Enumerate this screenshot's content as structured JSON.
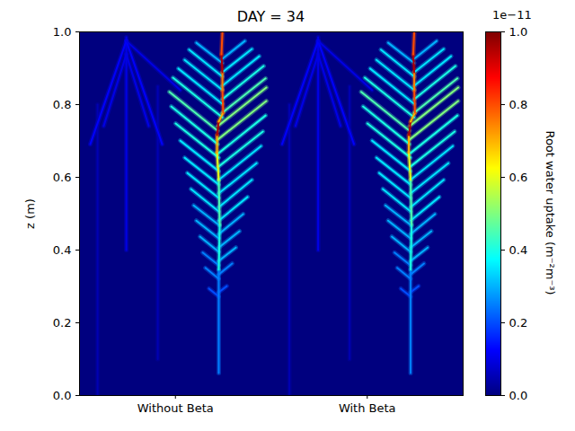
{
  "chart_data": {
    "type": "heatmap",
    "title": "DAY = 34",
    "ylabel": "z (m)",
    "xlim": [
      0,
      2
    ],
    "xticks": [
      {
        "value": 0.5,
        "label": "Without Beta"
      },
      {
        "value": 1.5,
        "label": "With Beta"
      }
    ],
    "ylim": [
      0,
      1
    ],
    "yticks": [
      {
        "value": 0,
        "label": "0.0"
      },
      0.2,
      0.4,
      0.6,
      0.8,
      {
        "value": 1,
        "label": "1.0"
      }
    ],
    "background_value": 0,
    "colorbar": {
      "label": "Root water uptake (m⁻²m⁻³)",
      "offset_label": "1e−11",
      "range": [
        0,
        1e-11
      ],
      "ticks": [
        {
          "value": 0,
          "label": "0.0"
        },
        {
          "value": 2e-12,
          "label": "0.2"
        },
        {
          "value": 4e-12,
          "label": "0.4"
        },
        {
          "value": 6e-12,
          "label": "0.6"
        },
        {
          "value": 8e-12,
          "label": "0.8"
        },
        {
          "value": 1e-11,
          "label": "1.0"
        }
      ]
    },
    "segments": [
      {
        "x": [
          0.094,
          0.094
        ],
        "z": [
          0.0,
          0.8
        ],
        "value": 5e-13
      },
      {
        "x": [
          0.408,
          0.408
        ],
        "z": [
          0.1,
          0.85
        ],
        "value": 5e-13
      },
      {
        "x": [
          0.244,
          0.244
        ],
        "z": [
          0.4,
          0.985
        ],
        "value": 1e-12
      },
      {
        "x": [
          0.244,
          0.056
        ],
        "z": [
          0.975,
          0.691
        ],
        "value": 1.2e-12
      },
      {
        "x": [
          0.244,
          0.431
        ],
        "z": [
          0.975,
          0.691
        ],
        "value": 1.2e-12
      },
      {
        "x": [
          0.244,
          0.126
        ],
        "z": [
          0.938,
          0.741
        ],
        "value": 1e-12
      },
      {
        "x": [
          0.244,
          0.361
        ],
        "z": [
          0.938,
          0.741
        ],
        "value": 1e-12
      },
      {
        "x": [
          0.244,
          0.525
        ],
        "z": [
          0.975,
          0.84
        ],
        "value": 1e-12
      },
      {
        "x": [
          0.726,
          0.675
        ],
        "z": [
          0.272,
          0.294
        ],
        "value": 2e-12
      },
      {
        "x": [
          0.726,
          0.656
        ],
        "z": [
          0.321,
          0.351
        ],
        "value": 2.5e-12
      },
      {
        "x": [
          0.726,
          0.642
        ],
        "z": [
          0.358,
          0.393
        ],
        "value": 2.5e-12
      },
      {
        "x": [
          0.726,
          0.628
        ],
        "z": [
          0.395,
          0.437
        ],
        "value": 3e-12
      },
      {
        "x": [
          0.726,
          0.609
        ],
        "z": [
          0.432,
          0.481
        ],
        "value": 3e-12
      },
      {
        "x": [
          0.726,
          0.595
        ],
        "z": [
          0.469,
          0.523
        ],
        "value": 3e-12
      },
      {
        "x": [
          0.726,
          0.581
        ],
        "z": [
          0.506,
          0.568
        ],
        "value": 3.5e-12
      },
      {
        "x": [
          0.726,
          0.562
        ],
        "z": [
          0.543,
          0.612
        ],
        "value": 3.5e-12
      },
      {
        "x": [
          0.726,
          0.548
        ],
        "z": [
          0.58,
          0.654
        ],
        "value": 3.5e-12
      },
      {
        "x": [
          0.726,
          0.525
        ],
        "z": [
          0.617,
          0.701
        ],
        "value": 3.5e-12
      },
      {
        "x": [
          0.726,
          0.501
        ],
        "z": [
          0.654,
          0.748
        ],
        "value": 4e-12
      },
      {
        "x": [
          0.721,
          0.478
        ],
        "z": [
          0.691,
          0.795
        ],
        "value": 4e-12
      },
      {
        "x": [
          0.721,
          0.468
        ],
        "z": [
          0.728,
          0.835
        ],
        "value": 4.5e-12
      },
      {
        "x": [
          0.745,
          0.487
        ],
        "z": [
          0.765,
          0.874
        ],
        "value": 4e-12
      },
      {
        "x": [
          0.745,
          0.515
        ],
        "z": [
          0.802,
          0.899
        ],
        "value": 3.5e-12
      },
      {
        "x": [
          0.745,
          0.548
        ],
        "z": [
          0.84,
          0.923
        ],
        "value": 3.5e-12
      },
      {
        "x": [
          0.745,
          0.571
        ],
        "z": [
          0.877,
          0.951
        ],
        "value": 3.5e-12
      },
      {
        "x": [
          0.745,
          0.609
        ],
        "z": [
          0.914,
          0.97
        ],
        "value": 3e-12
      },
      {
        "x": [
          0.726,
          0.768
        ],
        "z": [
          0.284,
          0.301
        ],
        "value": 2e-12
      },
      {
        "x": [
          0.726,
          0.796
        ],
        "z": [
          0.333,
          0.363
        ],
        "value": 2.5e-12
      },
      {
        "x": [
          0.726,
          0.815
        ],
        "z": [
          0.37,
          0.407
        ],
        "value": 3e-12
      },
      {
        "x": [
          0.726,
          0.834
        ],
        "z": [
          0.407,
          0.452
        ],
        "value": 3e-12
      },
      {
        "x": [
          0.726,
          0.853
        ],
        "z": [
          0.444,
          0.499
        ],
        "value": 3e-12
      },
      {
        "x": [
          0.726,
          0.876
        ],
        "z": [
          0.481,
          0.546
        ],
        "value": 3.5e-12
      },
      {
        "x": [
          0.726,
          0.899
        ],
        "z": [
          0.518,
          0.593
        ],
        "value": 3.5e-12
      },
      {
        "x": [
          0.726,
          0.923
        ],
        "z": [
          0.556,
          0.639
        ],
        "value": 3.5e-12
      },
      {
        "x": [
          0.726,
          0.946
        ],
        "z": [
          0.593,
          0.686
        ],
        "value": 3.5e-12
      },
      {
        "x": [
          0.726,
          0.956
        ],
        "z": [
          0.63,
          0.726
        ],
        "value": 4e-12
      },
      {
        "x": [
          0.726,
          0.97
        ],
        "z": [
          0.667,
          0.77
        ],
        "value": 4e-12
      },
      {
        "x": [
          0.721,
          0.974
        ],
        "z": [
          0.704,
          0.81
        ],
        "value": 5e-12
      },
      {
        "x": [
          0.721,
          0.974
        ],
        "z": [
          0.741,
          0.847
        ],
        "value": 5e-12
      },
      {
        "x": [
          0.745,
          0.97
        ],
        "z": [
          0.778,
          0.872
        ],
        "value": 4.5e-12
      },
      {
        "x": [
          0.745,
          0.96
        ],
        "z": [
          0.815,
          0.906
        ],
        "value": 4e-12
      },
      {
        "x": [
          0.745,
          0.937
        ],
        "z": [
          0.852,
          0.933
        ],
        "value": 3.5e-12
      },
      {
        "x": [
          0.745,
          0.899
        ],
        "z": [
          0.889,
          0.953
        ],
        "value": 3.5e-12
      },
      {
        "x": [
          0.745,
          0.862
        ],
        "z": [
          0.926,
          0.975
        ],
        "value": 3e-12
      },
      {
        "x": [
          0.726,
          0.726
        ],
        "z": [
          0.062,
          0.346
        ],
        "value": 2.5e-12
      },
      {
        "x": [
          0.726,
          0.731
        ],
        "z": [
          0.346,
          0.469
        ],
        "value": 4e-12
      },
      {
        "x": [
          0.731,
          0.726
        ],
        "z": [
          0.469,
          0.593
        ],
        "value": 4.5e-12
      },
      {
        "x": [
          0.726,
          0.717
        ],
        "z": [
          0.593,
          0.667
        ],
        "value": 6e-12
      },
      {
        "x": [
          0.717,
          0.717
        ],
        "z": [
          0.667,
          0.716
        ],
        "value": 7e-12
      },
      {
        "x": [
          0.717,
          0.726
        ],
        "z": [
          0.716,
          0.753
        ],
        "value": 9.5e-12
      },
      {
        "x": [
          0.726,
          0.749
        ],
        "z": [
          0.753,
          0.778
        ],
        "value": 7e-12
      },
      {
        "x": [
          0.749,
          0.745
        ],
        "z": [
          0.778,
          0.84
        ],
        "value": 8e-12
      },
      {
        "x": [
          0.745,
          0.745
        ],
        "z": [
          0.84,
          0.889
        ],
        "value": 7.5e-12
      },
      {
        "x": [
          0.745,
          0.74
        ],
        "z": [
          0.889,
          0.938
        ],
        "value": 9.5e-12
      },
      {
        "x": [
          0.74,
          0.745
        ],
        "z": [
          0.938,
          1.0
        ],
        "value": 8e-12
      },
      {
        "x": [
          1.094,
          1.094
        ],
        "z": [
          0.0,
          0.8
        ],
        "value": 5e-13
      },
      {
        "x": [
          1.408,
          1.408
        ],
        "z": [
          0.1,
          0.85
        ],
        "value": 5e-13
      },
      {
        "x": [
          1.244,
          1.244
        ],
        "z": [
          0.4,
          0.985
        ],
        "value": 1e-12
      },
      {
        "x": [
          1.244,
          1.056
        ],
        "z": [
          0.975,
          0.691
        ],
        "value": 1.2e-12
      },
      {
        "x": [
          1.244,
          1.431
        ],
        "z": [
          0.975,
          0.691
        ],
        "value": 1.2e-12
      },
      {
        "x": [
          1.244,
          1.126
        ],
        "z": [
          0.938,
          0.741
        ],
        "value": 1e-12
      },
      {
        "x": [
          1.244,
          1.361
        ],
        "z": [
          0.938,
          0.741
        ],
        "value": 1e-12
      },
      {
        "x": [
          1.244,
          1.525
        ],
        "z": [
          0.975,
          0.84
        ],
        "value": 1e-12
      },
      {
        "x": [
          1.726,
          1.675
        ],
        "z": [
          0.272,
          0.294
        ],
        "value": 2e-12
      },
      {
        "x": [
          1.726,
          1.656
        ],
        "z": [
          0.321,
          0.351
        ],
        "value": 2.5e-12
      },
      {
        "x": [
          1.726,
          1.642
        ],
        "z": [
          0.358,
          0.393
        ],
        "value": 2.5e-12
      },
      {
        "x": [
          1.726,
          1.628
        ],
        "z": [
          0.395,
          0.437
        ],
        "value": 3e-12
      },
      {
        "x": [
          1.726,
          1.609
        ],
        "z": [
          0.432,
          0.481
        ],
        "value": 3e-12
      },
      {
        "x": [
          1.726,
          1.595
        ],
        "z": [
          0.469,
          0.523
        ],
        "value": 3e-12
      },
      {
        "x": [
          1.726,
          1.581
        ],
        "z": [
          0.506,
          0.568
        ],
        "value": 3.5e-12
      },
      {
        "x": [
          1.726,
          1.562
        ],
        "z": [
          0.543,
          0.612
        ],
        "value": 3.5e-12
      },
      {
        "x": [
          1.726,
          1.548
        ],
        "z": [
          0.58,
          0.654
        ],
        "value": 3.5e-12
      },
      {
        "x": [
          1.726,
          1.525
        ],
        "z": [
          0.617,
          0.701
        ],
        "value": 3.5e-12
      },
      {
        "x": [
          1.726,
          1.501
        ],
        "z": [
          0.654,
          0.748
        ],
        "value": 4e-12
      },
      {
        "x": [
          1.721,
          1.478
        ],
        "z": [
          0.691,
          0.795
        ],
        "value": 4e-12
      },
      {
        "x": [
          1.721,
          1.468
        ],
        "z": [
          0.728,
          0.835
        ],
        "value": 4.5e-12
      },
      {
        "x": [
          1.745,
          1.487
        ],
        "z": [
          0.765,
          0.874
        ],
        "value": 4e-12
      },
      {
        "x": [
          1.745,
          1.515
        ],
        "z": [
          0.802,
          0.899
        ],
        "value": 3.5e-12
      },
      {
        "x": [
          1.745,
          1.548
        ],
        "z": [
          0.84,
          0.923
        ],
        "value": 3.5e-12
      },
      {
        "x": [
          1.745,
          1.571
        ],
        "z": [
          0.877,
          0.951
        ],
        "value": 3.5e-12
      },
      {
        "x": [
          1.745,
          1.609
        ],
        "z": [
          0.914,
          0.97
        ],
        "value": 3e-12
      },
      {
        "x": [
          1.726,
          1.768
        ],
        "z": [
          0.284,
          0.301
        ],
        "value": 2e-12
      },
      {
        "x": [
          1.726,
          1.796
        ],
        "z": [
          0.333,
          0.363
        ],
        "value": 2.5e-12
      },
      {
        "x": [
          1.726,
          1.815
        ],
        "z": [
          0.37,
          0.407
        ],
        "value": 3e-12
      },
      {
        "x": [
          1.726,
          1.834
        ],
        "z": [
          0.407,
          0.452
        ],
        "value": 3e-12
      },
      {
        "x": [
          1.726,
          1.853
        ],
        "z": [
          0.444,
          0.499
        ],
        "value": 3e-12
      },
      {
        "x": [
          1.726,
          1.876
        ],
        "z": [
          0.481,
          0.546
        ],
        "value": 3.5e-12
      },
      {
        "x": [
          1.726,
          1.899
        ],
        "z": [
          0.518,
          0.593
        ],
        "value": 3.5e-12
      },
      {
        "x": [
          1.726,
          1.923
        ],
        "z": [
          0.556,
          0.639
        ],
        "value": 3.5e-12
      },
      {
        "x": [
          1.726,
          1.946
        ],
        "z": [
          0.593,
          0.686
        ],
        "value": 3.5e-12
      },
      {
        "x": [
          1.726,
          1.956
        ],
        "z": [
          0.63,
          0.726
        ],
        "value": 4e-12
      },
      {
        "x": [
          1.726,
          1.97
        ],
        "z": [
          0.667,
          0.77
        ],
        "value": 4e-12
      },
      {
        "x": [
          1.721,
          1.974
        ],
        "z": [
          0.704,
          0.81
        ],
        "value": 5e-12
      },
      {
        "x": [
          1.721,
          1.974
        ],
        "z": [
          0.741,
          0.847
        ],
        "value": 5e-12
      },
      {
        "x": [
          1.745,
          1.97
        ],
        "z": [
          0.778,
          0.872
        ],
        "value": 4.5e-12
      },
      {
        "x": [
          1.745,
          1.96
        ],
        "z": [
          0.815,
          0.906
        ],
        "value": 4e-12
      },
      {
        "x": [
          1.745,
          1.937
        ],
        "z": [
          0.852,
          0.933
        ],
        "value": 3.5e-12
      },
      {
        "x": [
          1.745,
          1.899
        ],
        "z": [
          0.889,
          0.953
        ],
        "value": 3.5e-12
      },
      {
        "x": [
          1.745,
          1.862
        ],
        "z": [
          0.926,
          0.975
        ],
        "value": 3e-12
      },
      {
        "x": [
          1.726,
          1.726
        ],
        "z": [
          0.062,
          0.346
        ],
        "value": 2.5e-12
      },
      {
        "x": [
          1.726,
          1.731
        ],
        "z": [
          0.346,
          0.469
        ],
        "value": 4e-12
      },
      {
        "x": [
          1.731,
          1.726
        ],
        "z": [
          0.469,
          0.593
        ],
        "value": 4.5e-12
      },
      {
        "x": [
          1.726,
          1.717
        ],
        "z": [
          0.593,
          0.667
        ],
        "value": 6e-12
      },
      {
        "x": [
          1.717,
          1.717
        ],
        "z": [
          0.667,
          0.716
        ],
        "value": 7e-12
      },
      {
        "x": [
          1.717,
          1.726
        ],
        "z": [
          0.716,
          0.753
        ],
        "value": 9.5e-12
      },
      {
        "x": [
          1.726,
          1.749
        ],
        "z": [
          0.753,
          0.778
        ],
        "value": 7e-12
      },
      {
        "x": [
          1.749,
          1.745
        ],
        "z": [
          0.778,
          0.84
        ],
        "value": 8e-12
      },
      {
        "x": [
          1.745,
          1.745
        ],
        "z": [
          0.84,
          0.889
        ],
        "value": 7.5e-12
      },
      {
        "x": [
          1.745,
          1.74
        ],
        "z": [
          0.889,
          0.938
        ],
        "value": 9.5e-12
      },
      {
        "x": [
          1.74,
          1.745
        ],
        "z": [
          0.938,
          1.0
        ],
        "value": 8e-12
      }
    ]
  }
}
